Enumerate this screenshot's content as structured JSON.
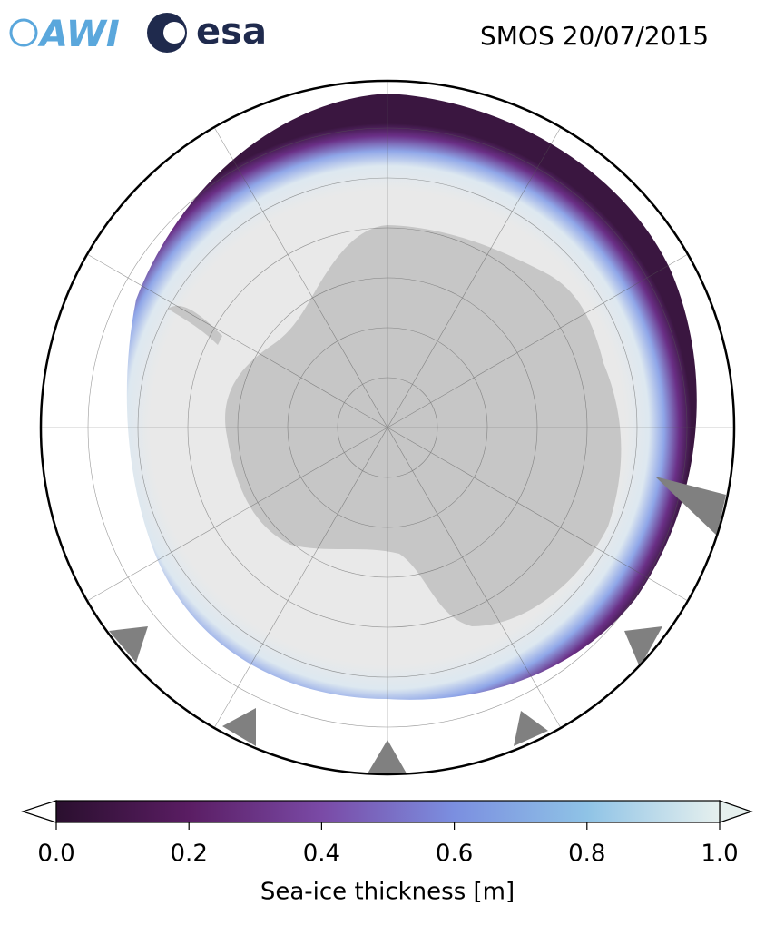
{
  "header": {
    "logos": [
      "AWI",
      "esa"
    ],
    "title": "SMOS 20/07/2015"
  },
  "colorbar": {
    "label": "Sea-ice thickness [m]",
    "lim": [
      0,
      1
    ],
    "ticks": [
      {
        "value": 0,
        "label": "0.0"
      },
      0.2,
      0.4,
      0.6,
      0.8,
      {
        "value": 1,
        "label": "1.0"
      }
    ],
    "colors": [
      "#2a0f2e",
      "#5a1d63",
      "#7a4aa6",
      "#7b8fe0",
      "#8fc3e6",
      "#e6f0ee"
    ]
  }
}
